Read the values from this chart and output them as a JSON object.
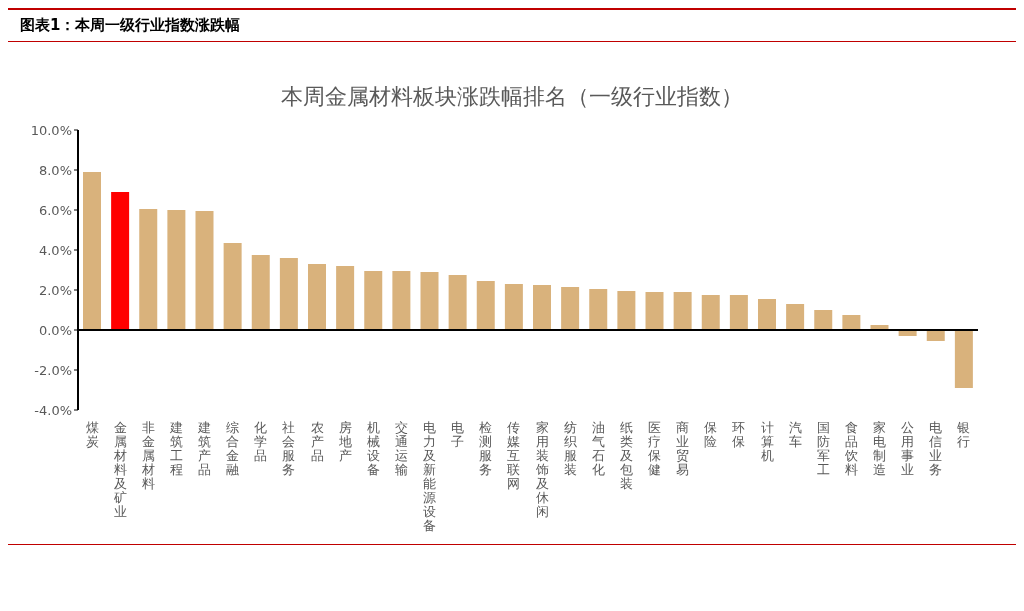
{
  "chart_data": {
    "type": "bar",
    "title": "图表1：本周一级行业指数涨跌幅",
    "subtitle": "本周金属材料板块涨跌幅排名（一级行业指数）",
    "categories": [
      "煤炭",
      "金属材料及矿业",
      "非金属材料",
      "建筑工程",
      "建筑产品",
      "综合金融",
      "化学品",
      "社会服务",
      "农产品",
      "房地产",
      "机械设备",
      "交通运输",
      "电力及新能源设备",
      "电子",
      "检测服务",
      "传媒互联网",
      "家用装饰及休闲",
      "纺织服装",
      "油气石化",
      "纸类及包装",
      "医疗保健",
      "商业贸易",
      "保险",
      "环保",
      "计算机",
      "汽车",
      "国防军工",
      "食品饮料",
      "家电制造",
      "公用事业",
      "电信业务",
      "银行"
    ],
    "values": [
      7.9,
      6.9,
      6.05,
      6.0,
      5.95,
      4.35,
      3.75,
      3.6,
      3.3,
      3.2,
      2.95,
      2.95,
      2.9,
      2.75,
      2.45,
      2.3,
      2.25,
      2.15,
      2.05,
      1.95,
      1.9,
      1.9,
      1.75,
      1.75,
      1.55,
      1.3,
      1.0,
      0.75,
      0.25,
      -0.3,
      -0.55,
      -2.9
    ],
    "colors": [
      "#d9b27c",
      "#ff0000",
      "#d9b27c",
      "#d9b27c",
      "#d9b27c",
      "#d9b27c",
      "#d9b27c",
      "#d9b27c",
      "#d9b27c",
      "#d9b27c",
      "#d9b27c",
      "#d9b27c",
      "#d9b27c",
      "#d9b27c",
      "#d9b27c",
      "#d9b27c",
      "#d9b27c",
      "#d9b27c",
      "#d9b27c",
      "#d9b27c",
      "#d9b27c",
      "#d9b27c",
      "#d9b27c",
      "#d9b27c",
      "#d9b27c",
      "#d9b27c",
      "#d9b27c",
      "#d9b27c",
      "#d9b27c",
      "#d9b27c",
      "#d9b27c",
      "#d9b27c"
    ],
    "ylim": [
      -4,
      10
    ],
    "yticks": [
      {
        "value": -4,
        "label": "-4.0%"
      },
      {
        "value": -2,
        "label": "-2.0%"
      },
      {
        "value": 0,
        "label": "0.0%"
      },
      {
        "value": 2,
        "label": "2.0%"
      },
      {
        "value": 4,
        "label": "4.0%"
      },
      {
        "value": 6,
        "label": "6.0%"
      },
      {
        "value": 8,
        "label": "8.0%"
      },
      {
        "value": 10,
        "label": "10.0%"
      }
    ],
    "ref_lines": [
      {
        "axis": "y",
        "value": 0,
        "color": "#000000"
      }
    ],
    "grid": false,
    "legend": false
  }
}
